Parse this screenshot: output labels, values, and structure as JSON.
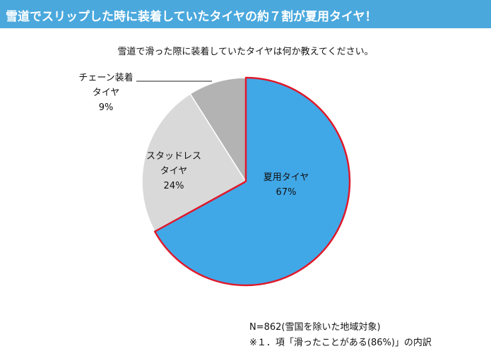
{
  "header": {
    "title": "雪道でスリップした時に装着していたタイヤの約７割が夏用タイヤ！",
    "background": "#4aa8dd"
  },
  "question": "雪道で滑った際に装着していたタイヤは何か教えてください。",
  "chart_data": {
    "type": "pie",
    "title": "",
    "slices": [
      {
        "label": "夏用タイヤ",
        "value": 67,
        "value_label": "67%",
        "color": "#41a8e8",
        "edge": "#e0192b"
      },
      {
        "label": "スタッドレスタイヤ",
        "value": 24,
        "value_label": "24%",
        "color": "#d9d9d9"
      },
      {
        "label": "チェーン装着タイヤ",
        "value": 9,
        "value_label": "9%",
        "color": "#b3b3b3"
      }
    ],
    "start": "12 o'clock, clockwise"
  },
  "labels": {
    "summer": {
      "line1": "夏用タイヤ",
      "line2": "67%"
    },
    "studless": {
      "line1": "スタッドレス",
      "line2": "タイヤ",
      "line3": "24%"
    },
    "chain": {
      "line1": "チェーン装着",
      "line2": "タイヤ",
      "line3": "9%"
    }
  },
  "notes": {
    "n": "N=862(雪国を除いた地域対象)",
    "source": "※１．項「滑ったことがある(86%)」の内訳"
  }
}
